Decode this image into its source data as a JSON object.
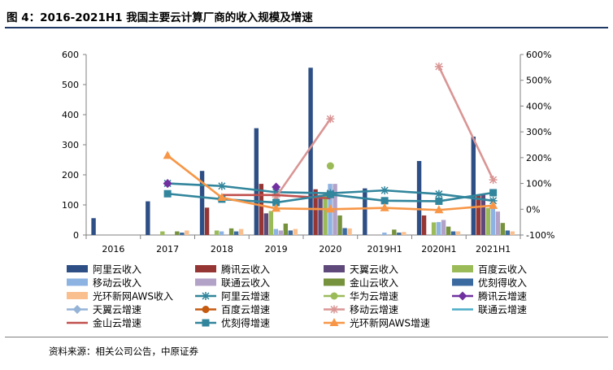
{
  "title": "图 4：2016-2021H1  我国主要云计算厂商的收入规模及增速",
  "source": "资料来源：相关公司公告，中原证券",
  "chart_data": {
    "type": "bar",
    "title": "",
    "categories": [
      "2016",
      "2017",
      "2018",
      "2019",
      "2020",
      "2019H1",
      "2020H1",
      "2021H1"
    ],
    "y_left": {
      "ticks": [
        "0",
        "100",
        "200",
        "300",
        "400",
        "500",
        "600"
      ],
      "lim": [
        0,
        600
      ]
    },
    "y_right": {
      "ticks": [
        "-100%",
        "0%",
        "100%",
        "200%",
        "300%",
        "400%",
        "500%",
        "600%"
      ],
      "lim": [
        -100,
        600
      ],
      "unit": "%"
    },
    "grid": false,
    "legend_position": "bottom",
    "bar_series": [
      {
        "name": "阿里云收入",
        "color": "#2e4f85",
        "values": [
          56,
          112,
          213,
          355,
          556,
          155,
          246,
          327
        ]
      },
      {
        "name": "腾讯云收入",
        "color": "#963634",
        "values": [
          null,
          null,
          91,
          170,
          152,
          null,
          65,
          132
        ]
      },
      {
        "name": "天翼云收入",
        "color": "#5f497a",
        "values": [
          null,
          null,
          null,
          72,
          133,
          null,
          null,
          135
        ]
      },
      {
        "name": "百度云收入",
        "color": "#9bbb59",
        "values": [
          null,
          12,
          15,
          80,
          140,
          null,
          42,
          90
        ]
      },
      {
        "name": "移动云收入",
        "color": "#8db3e2",
        "values": [
          null,
          null,
          12,
          20,
          170,
          8,
          43,
          100
        ]
      },
      {
        "name": "联通云收入",
        "color": "#b3a2c7",
        "values": [
          null,
          null,
          null,
          15,
          170,
          null,
          50,
          78
        ]
      },
      {
        "name": "金山云收入",
        "color": "#76923c",
        "values": [
          null,
          12,
          22,
          38,
          65,
          18,
          28,
          40
        ]
      },
      {
        "name": "优刻得收入",
        "color": "#3b6aa0",
        "values": [
          null,
          8,
          12,
          15,
          23,
          8,
          12,
          15
        ]
      },
      {
        "name": "光环新网AWS收入",
        "color": "#fabf8f",
        "values": [
          null,
          15,
          20,
          20,
          22,
          10,
          12,
          12
        ]
      }
    ],
    "line_series": [
      {
        "name": "阿里云增速",
        "color": "#31859c",
        "marker": "star",
        "values": [
          null,
          100,
          90,
          66,
          62,
          73,
          59,
          33
        ]
      },
      {
        "name": "华为云增速",
        "color": "#9bbb59",
        "marker": "circle",
        "values": [
          null,
          null,
          null,
          null,
          168,
          null,
          null,
          null
        ]
      },
      {
        "name": "腾讯云增速",
        "color": "#7030a0",
        "marker": "diamond",
        "values": [
          null,
          100,
          null,
          86,
          null,
          null,
          null,
          null
        ]
      },
      {
        "name": "天翼云增速",
        "color": "#95b3d7",
        "marker": "diamond",
        "values": [
          null,
          null,
          null,
          null,
          null,
          null,
          null,
          null
        ]
      },
      {
        "name": "百度云增速",
        "color": "#c55a11",
        "marker": "circle",
        "values": [
          null,
          null,
          null,
          null,
          null,
          null,
          null,
          null
        ]
      },
      {
        "name": "移动云增速",
        "color": "#d99594",
        "marker": "star",
        "values": [
          null,
          null,
          null,
          48,
          350,
          null,
          553,
          114
        ]
      },
      {
        "name": "联通云增速",
        "color": "#4bacc6",
        "marker": "none",
        "values": [
          null,
          null,
          null,
          null,
          null,
          null,
          null,
          null
        ]
      },
      {
        "name": "金山云增速",
        "color": "#c0504d",
        "marker": "none",
        "values": [
          null,
          null,
          55,
          55,
          42,
          null,
          null,
          40
        ]
      },
      {
        "name": "优刻得增速",
        "color": "#31859c",
        "marker": "square",
        "values": [
          null,
          60,
          39,
          26,
          57,
          33,
          31,
          64
        ]
      },
      {
        "name": "光环新网AWS增速",
        "color": "#f79646",
        "marker": "triangle",
        "values": [
          null,
          208,
          45,
          3,
          0,
          5,
          -3,
          14
        ]
      }
    ]
  }
}
